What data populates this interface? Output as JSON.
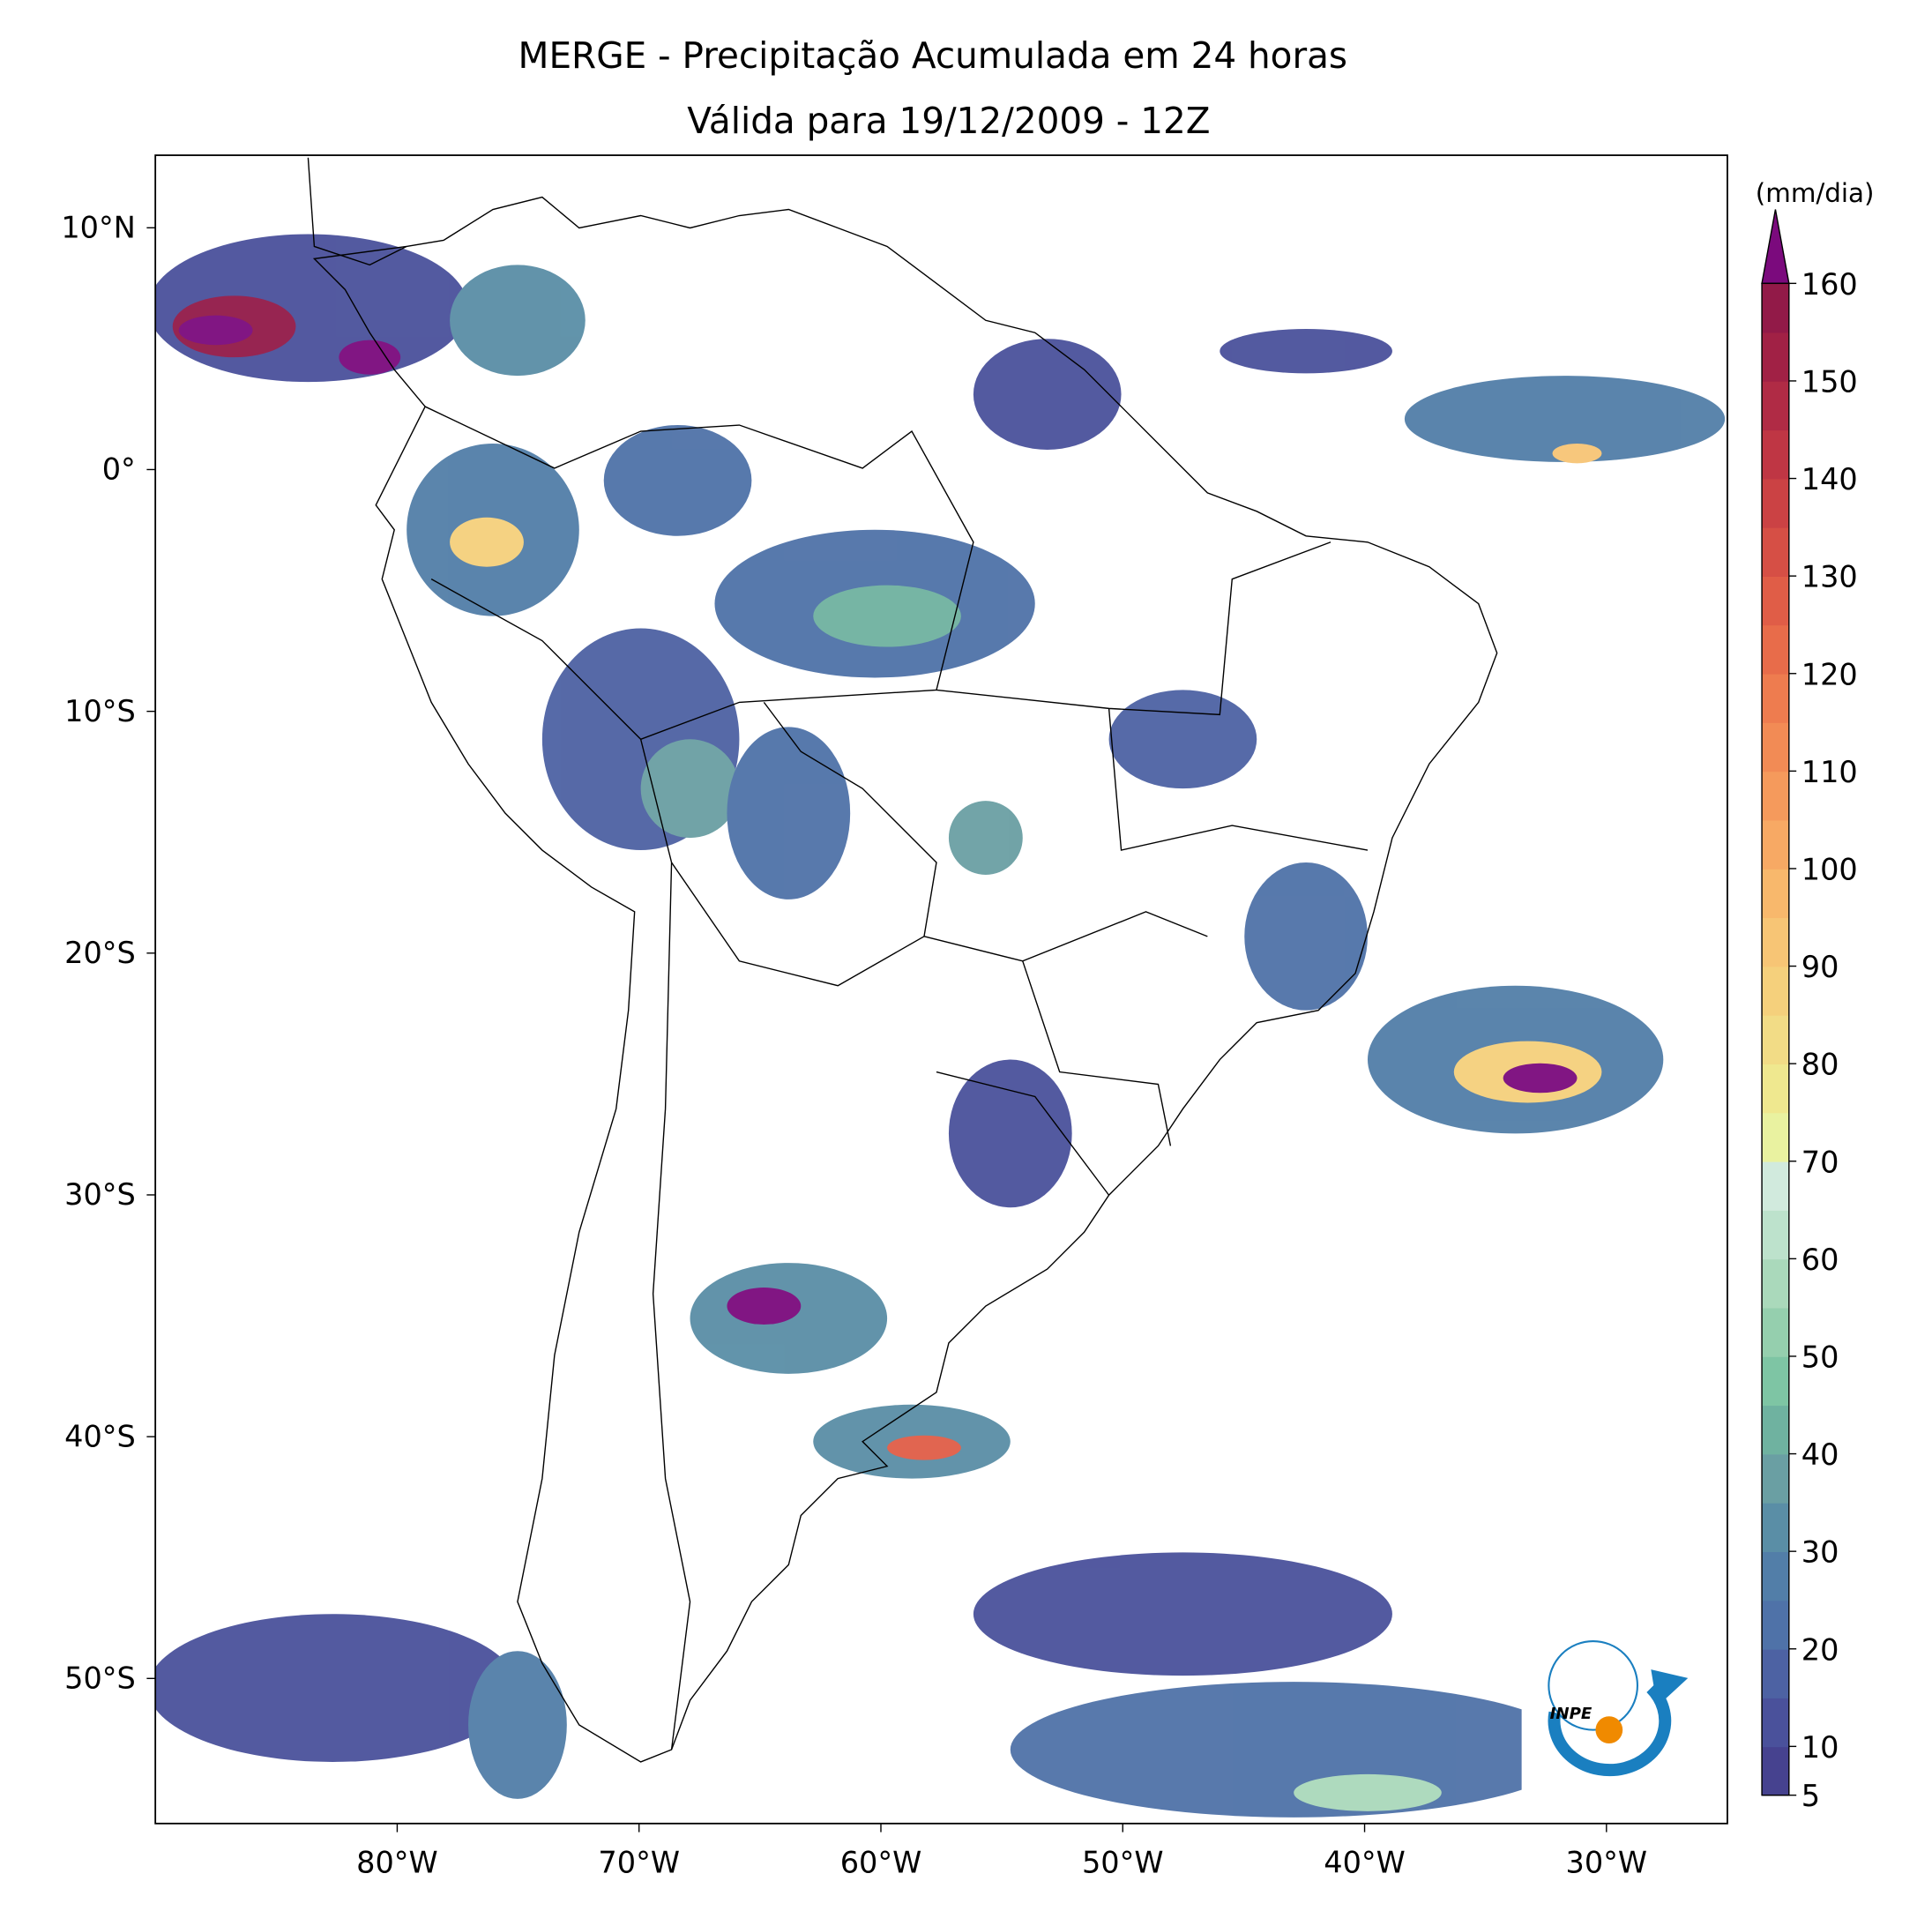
{
  "title": [
    "MERGE - Precipitação Acumulada em 24 horas",
    "Válida para 19/12/2009 - 12Z"
  ],
  "map": {
    "lon_range": [
      -90,
      -25
    ],
    "lat_range": [
      -56,
      13
    ],
    "lon_ticks": [
      {
        "value": -80,
        "label": "80°W"
      },
      {
        "value": -70,
        "label": "70°W"
      },
      {
        "value": -60,
        "label": "60°W"
      },
      {
        "value": -50,
        "label": "50°W"
      },
      {
        "value": -40,
        "label": "40°W"
      },
      {
        "value": -30,
        "label": "30°W"
      }
    ],
    "lat_ticks": [
      {
        "value": 10,
        "label": "10°N"
      },
      {
        "value": 0,
        "label": "0°"
      },
      {
        "value": -10,
        "label": "10°S"
      },
      {
        "value": -20,
        "label": "20°S"
      },
      {
        "value": -30,
        "label": "30°S"
      },
      {
        "value": -40,
        "label": "40°S"
      },
      {
        "value": -50,
        "label": "50°S"
      }
    ]
  },
  "colorbar": {
    "unit": "(mm/dia)",
    "range": [
      5,
      160
    ],
    "ticks": [
      5,
      10,
      20,
      30,
      40,
      50,
      60,
      70,
      80,
      90,
      100,
      110,
      120,
      130,
      140,
      150,
      160
    ],
    "colors": [
      "#46428f",
      "#4a519b",
      "#4d62a3",
      "#4f72a8",
      "#527ea8",
      "#5a8ea6",
      "#6a9fa3",
      "#6fb2a0",
      "#7ec5a4",
      "#95cfae",
      "#aad9bb",
      "#bde2cc",
      "#d1eadd",
      "#e9f2a0",
      "#efe88f",
      "#f2dc86",
      "#f5d07c",
      "#f7c575",
      "#f8b86c",
      "#f7a964",
      "#f59a5c",
      "#f28b55",
      "#ee7c4f",
      "#e86c4a",
      "#e05d47",
      "#d64f45",
      "#cb4244",
      "#bf3644",
      "#b02b45",
      "#a12145",
      "#921a48"
    ],
    "extend_color": "#7b0a7d"
  },
  "logo": "INPE"
}
